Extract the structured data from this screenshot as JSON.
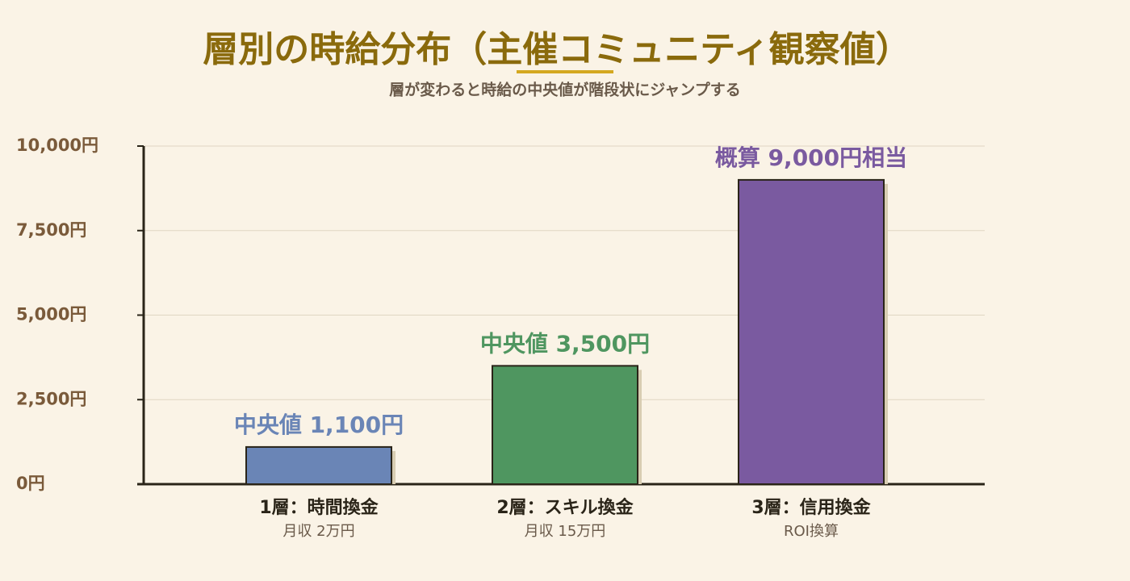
{
  "chart_data": {
    "type": "bar",
    "title": "層別の時給分布（主催コミュニティ観察値）",
    "subtitle": "層が変わると時給の中央値が階段状にジャンプする",
    "categories": [
      "1層：時間換金",
      "2層：スキル換金",
      "3層：信用換金"
    ],
    "category_sublabels": [
      "月収 2万円",
      "月収 15万円",
      "ROI換算"
    ],
    "values": [
      1100,
      3500,
      9000
    ],
    "value_labels": [
      "中央値 1,100円",
      "中央値 3,500円",
      "概算 9,000円相当"
    ],
    "colors": [
      "#6a85b6",
      "#4f9660",
      "#7a5aa0"
    ],
    "ylim": [
      0,
      10000
    ],
    "yticks": [
      {
        "value": 0,
        "label": "0円"
      },
      {
        "value": 2500,
        "label": "2,500円"
      },
      {
        "value": 5000,
        "label": "5,000円"
      },
      {
        "value": 7500,
        "label": "7,500円"
      },
      {
        "value": 10000,
        "label": "10,000円"
      }
    ],
    "grid": true
  }
}
